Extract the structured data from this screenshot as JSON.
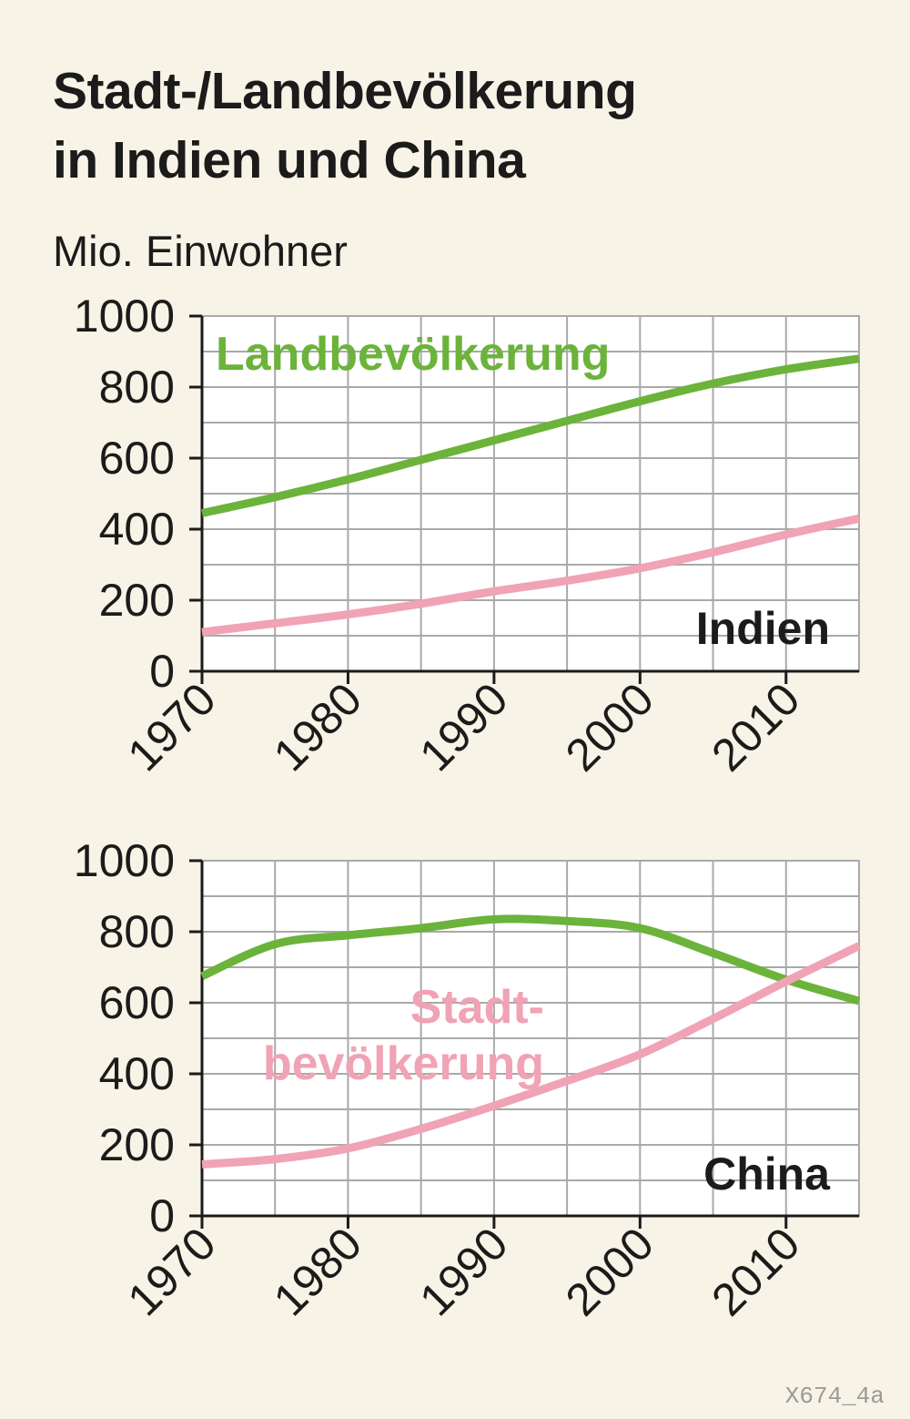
{
  "title_line1": "Stadt-/Landbevölkerung",
  "title_line2": "in Indien und China",
  "unit": "Mio. Einwohner",
  "figure_code": "X674_4a",
  "colors": {
    "land": "#6bb33a",
    "stadt": "#f0a3b4",
    "grid": "#a9a9a9",
    "background": "#f7f3e6",
    "plot": "#ffffff"
  },
  "chart_data": [
    {
      "type": "line",
      "panel_label": "Indien",
      "x_ticks": [
        1970,
        1980,
        1990,
        2000,
        2010
      ],
      "y_ticks": [
        0,
        200,
        400,
        600,
        800,
        1000
      ],
      "xlim": [
        1970,
        2015
      ],
      "ylim": [
        0,
        1000
      ],
      "grid": true,
      "series": [
        {
          "name": "Landbevölkerung",
          "color": "#6bb33a",
          "x": [
            1970,
            1975,
            1980,
            1985,
            1990,
            1995,
            2000,
            2005,
            2010,
            2015
          ],
          "y": [
            445,
            490,
            540,
            595,
            650,
            705,
            760,
            810,
            850,
            880
          ]
        },
        {
          "name": "",
          "color": "#f0a3b4",
          "x": [
            1970,
            1975,
            1980,
            1985,
            1990,
            1995,
            2000,
            2005,
            2010,
            2015
          ],
          "y": [
            110,
            135,
            160,
            190,
            225,
            255,
            290,
            335,
            385,
            430
          ]
        }
      ]
    },
    {
      "type": "line",
      "panel_label": "China",
      "x_ticks": [
        1970,
        1980,
        1990,
        2000,
        2010
      ],
      "y_ticks": [
        0,
        200,
        400,
        600,
        800,
        1000
      ],
      "xlim": [
        1970,
        2015
      ],
      "ylim": [
        0,
        1000
      ],
      "grid": true,
      "series": [
        {
          "name": "",
          "color": "#6bb33a",
          "x": [
            1970,
            1975,
            1980,
            1985,
            1990,
            1995,
            2000,
            2005,
            2010,
            2015
          ],
          "y": [
            675,
            765,
            790,
            810,
            835,
            830,
            810,
            740,
            665,
            605
          ]
        },
        {
          "name": "Stadtbevölkerung",
          "label_lines": [
            "Stadt-",
            "bevölkerung"
          ],
          "color": "#f0a3b4",
          "x": [
            1970,
            1975,
            1980,
            1985,
            1990,
            1995,
            2000,
            2005,
            2010,
            2015
          ],
          "y": [
            145,
            160,
            190,
            245,
            310,
            380,
            455,
            555,
            660,
            760
          ]
        }
      ]
    }
  ]
}
